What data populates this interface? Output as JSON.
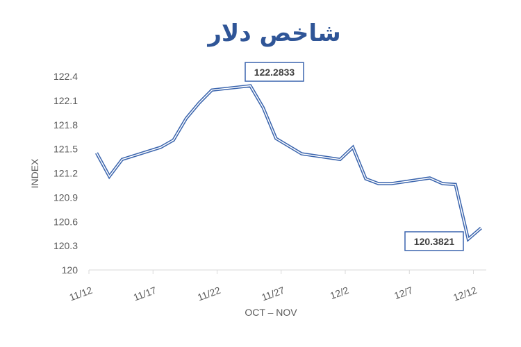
{
  "chart_data": {
    "type": "line",
    "title": "شاخص دلار",
    "xlabel": "OCT – NOV",
    "ylabel": "INDEX",
    "ylim": [
      120,
      122.4
    ],
    "yticks": [
      "120",
      "120.3",
      "120.6",
      "120.9",
      "121.2",
      "121.5",
      "121.8",
      "122.1",
      "122.4"
    ],
    "xticks": [
      "11/12",
      "11/17",
      "11/22",
      "11/27",
      "12/2",
      "12/7",
      "12/12"
    ],
    "grid": false,
    "line_color": "#3a64ad",
    "x": [
      "11/12",
      "11/13",
      "11/14",
      "11/17",
      "11/18",
      "11/19",
      "11/20",
      "11/21",
      "11/24",
      "11/25",
      "11/26",
      "11/28",
      "12/1",
      "12/2",
      "12/3",
      "12/4",
      "12/5",
      "12/8",
      "12/9",
      "12/10",
      "12/11",
      "12/12"
    ],
    "values": [
      121.45,
      121.16,
      121.37,
      121.52,
      121.61,
      121.88,
      122.07,
      122.23,
      122.2833,
      122.01,
      121.63,
      121.44,
      121.37,
      121.52,
      121.13,
      121.07,
      121.07,
      121.14,
      121.07,
      121.06,
      120.3821,
      120.52
    ],
    "annotations": [
      {
        "text": "122.2833",
        "at": "11/24"
      },
      {
        "text": "120.3821",
        "at": "12/11"
      }
    ]
  }
}
